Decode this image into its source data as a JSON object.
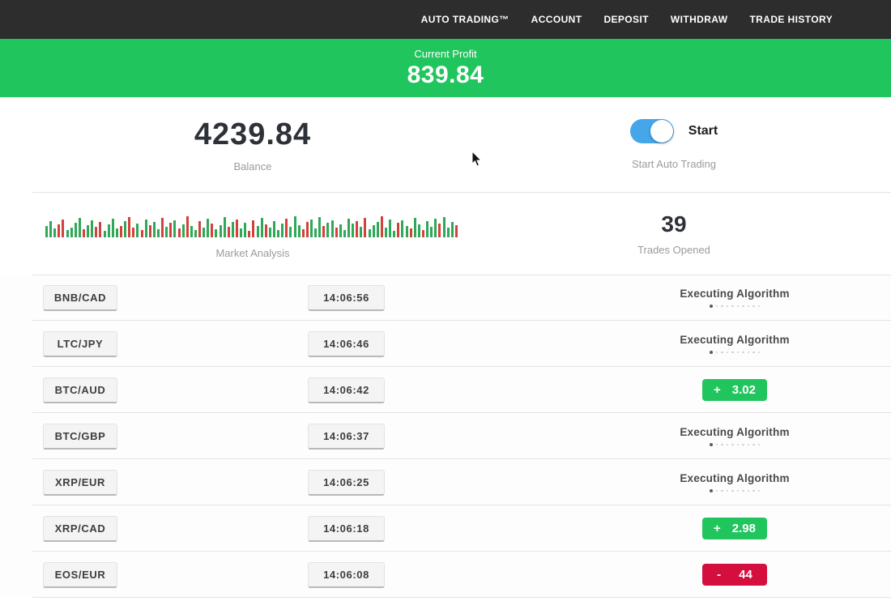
{
  "nav": {
    "items": [
      "AUTO TRADING™",
      "ACCOUNT",
      "DEPOSIT",
      "WITHDRAW",
      "TRADE HISTORY"
    ]
  },
  "banner": {
    "label": "Current Profit",
    "value": "839.84"
  },
  "overview": {
    "balance_value": "4239.84",
    "balance_label": "Balance",
    "toggle_label": "Start",
    "toggle_state": "on",
    "auto_trading_label": "Start Auto Trading",
    "trades_value": "39",
    "trades_label": "Trades Opened"
  },
  "chart_data": {
    "type": "bar",
    "title": "Market Analysis",
    "xlabel": "",
    "ylabel": "",
    "legend": false,
    "grid": false,
    "palette": {
      "g": "#2fa857",
      "r": "#d2423c"
    },
    "bars": [
      [
        14,
        "g"
      ],
      [
        20,
        "g"
      ],
      [
        11,
        "g"
      ],
      [
        16,
        "r"
      ],
      [
        22,
        "r"
      ],
      [
        9,
        "g"
      ],
      [
        12,
        "g"
      ],
      [
        18,
        "g"
      ],
      [
        24,
        "g"
      ],
      [
        10,
        "r"
      ],
      [
        15,
        "g"
      ],
      [
        21,
        "g"
      ],
      [
        13,
        "r"
      ],
      [
        19,
        "r"
      ],
      [
        8,
        "g"
      ],
      [
        16,
        "g"
      ],
      [
        23,
        "g"
      ],
      [
        11,
        "g"
      ],
      [
        14,
        "r"
      ],
      [
        20,
        "g"
      ],
      [
        25,
        "r"
      ],
      [
        12,
        "r"
      ],
      [
        17,
        "g"
      ],
      [
        9,
        "r"
      ],
      [
        22,
        "g"
      ],
      [
        15,
        "r"
      ],
      [
        19,
        "g"
      ],
      [
        10,
        "g"
      ],
      [
        24,
        "r"
      ],
      [
        13,
        "g"
      ],
      [
        18,
        "r"
      ],
      [
        21,
        "g"
      ],
      [
        11,
        "r"
      ],
      [
        16,
        "g"
      ],
      [
        26,
        "r"
      ],
      [
        14,
        "g"
      ],
      [
        9,
        "g"
      ],
      [
        20,
        "r"
      ],
      [
        12,
        "g"
      ],
      [
        23,
        "g"
      ],
      [
        17,
        "r"
      ],
      [
        10,
        "g"
      ],
      [
        15,
        "g"
      ],
      [
        25,
        "g"
      ],
      [
        13,
        "r"
      ],
      [
        19,
        "g"
      ],
      [
        22,
        "r"
      ],
      [
        11,
        "g"
      ],
      [
        18,
        "g"
      ],
      [
        8,
        "r"
      ],
      [
        21,
        "r"
      ],
      [
        14,
        "g"
      ],
      [
        24,
        "g"
      ],
      [
        16,
        "r"
      ],
      [
        12,
        "g"
      ],
      [
        20,
        "g"
      ],
      [
        9,
        "g"
      ],
      [
        17,
        "g"
      ],
      [
        23,
        "r"
      ],
      [
        13,
        "g"
      ],
      [
        26,
        "g"
      ],
      [
        15,
        "g"
      ],
      [
        10,
        "r"
      ],
      [
        19,
        "r"
      ],
      [
        22,
        "g"
      ],
      [
        11,
        "g"
      ],
      [
        25,
        "g"
      ],
      [
        14,
        "r"
      ],
      [
        18,
        "g"
      ],
      [
        21,
        "g"
      ],
      [
        12,
        "r"
      ],
      [
        16,
        "g"
      ],
      [
        9,
        "g"
      ],
      [
        23,
        "g"
      ],
      [
        17,
        "g"
      ],
      [
        20,
        "r"
      ],
      [
        13,
        "g"
      ],
      [
        24,
        "r"
      ],
      [
        10,
        "g"
      ],
      [
        15,
        "g"
      ],
      [
        19,
        "g"
      ],
      [
        26,
        "r"
      ],
      [
        12,
        "g"
      ],
      [
        22,
        "g"
      ],
      [
        8,
        "g"
      ],
      [
        18,
        "r"
      ],
      [
        21,
        "g"
      ],
      [
        14,
        "g"
      ],
      [
        11,
        "r"
      ],
      [
        24,
        "g"
      ],
      [
        16,
        "g"
      ],
      [
        9,
        "r"
      ],
      [
        20,
        "g"
      ],
      [
        13,
        "g"
      ],
      [
        23,
        "g"
      ],
      [
        17,
        "r"
      ],
      [
        25,
        "g"
      ],
      [
        12,
        "g"
      ],
      [
        19,
        "g"
      ],
      [
        15,
        "r"
      ]
    ]
  },
  "table": {
    "rows": [
      {
        "pair": "BNB/CAD",
        "time": "14:06:56",
        "status": {
          "type": "executing",
          "label": "Executing Algorithm"
        }
      },
      {
        "pair": "LTC/JPY",
        "time": "14:06:46",
        "status": {
          "type": "executing",
          "label": "Executing Algorithm"
        }
      },
      {
        "pair": "BTC/AUD",
        "time": "14:06:42",
        "status": {
          "type": "profit",
          "sign": "+",
          "value": "3.02"
        }
      },
      {
        "pair": "BTC/GBP",
        "time": "14:06:37",
        "status": {
          "type": "executing",
          "label": "Executing Algorithm"
        }
      },
      {
        "pair": "XRP/EUR",
        "time": "14:06:25",
        "status": {
          "type": "executing",
          "label": "Executing Algorithm"
        }
      },
      {
        "pair": "XRP/CAD",
        "time": "14:06:18",
        "status": {
          "type": "profit",
          "sign": "+",
          "value": "2.98"
        }
      },
      {
        "pair": "EOS/EUR",
        "time": "14:06:08",
        "status": {
          "type": "loss",
          "sign": "-",
          "value": "44"
        }
      }
    ]
  },
  "colors": {
    "nav_bg": "#2d2d2d",
    "banner_green": "#21c55e",
    "badge_green": "#21c55e",
    "badge_red": "#d40e3d",
    "toggle_blue": "#45a7ea"
  }
}
